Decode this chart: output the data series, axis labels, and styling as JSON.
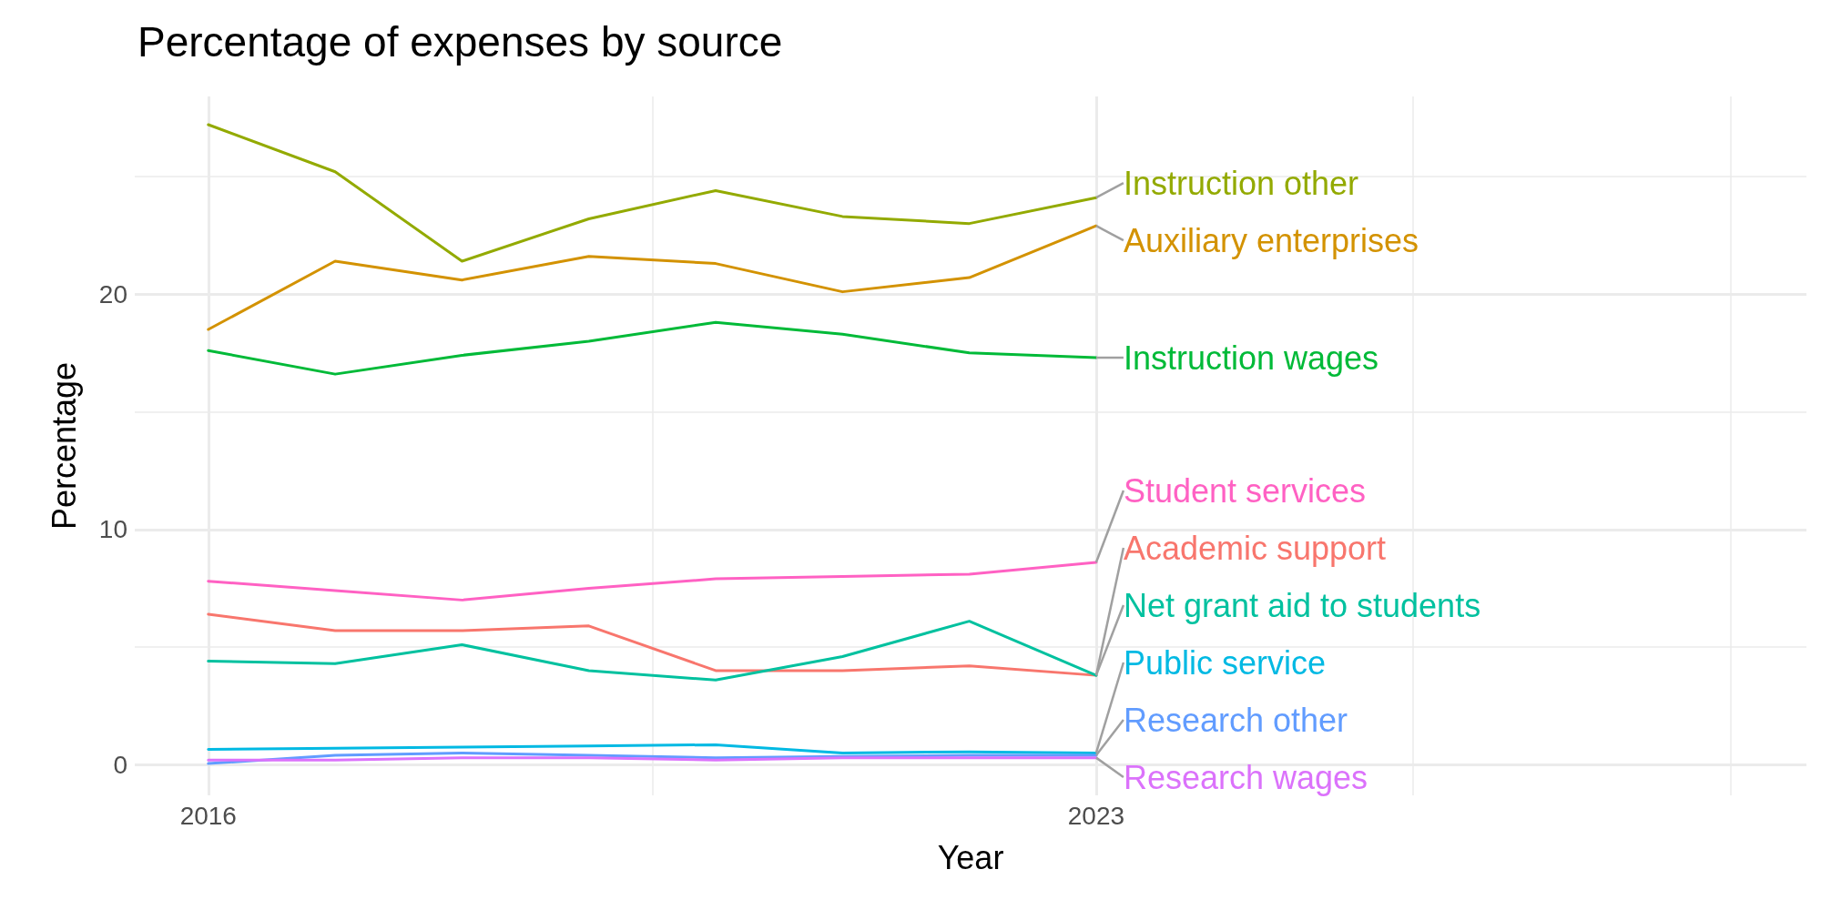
{
  "chart_data": {
    "type": "line",
    "title": "Percentage of expenses by source",
    "xlabel": "Year",
    "ylabel": "Percentage",
    "x": [
      2016,
      2017,
      2018,
      2019,
      2020,
      2021,
      2022,
      2023
    ],
    "xlim": [
      2015.42,
      2028.6
    ],
    "xticks": [
      2016,
      {
        "value": 2019.5,
        "label": null
      },
      2023,
      {
        "value": 2025.5,
        "label": null
      },
      {
        "value": 2028,
        "label": null
      }
    ],
    "ylim": [
      -1.3,
      28.4
    ],
    "yticks": [
      0,
      {
        "value": 5,
        "label": null
      },
      10,
      {
        "value": 15,
        "label": null
      },
      20,
      {
        "value": 25,
        "label": null
      }
    ],
    "grid": true,
    "legend": false,
    "marker": "none",
    "line_style": "solid",
    "series": [
      {
        "name": "Instruction other",
        "color": "#93aa00",
        "values": [
          27.2,
          25.2,
          21.4,
          23.2,
          24.4,
          23.3,
          23.0,
          24.1
        ]
      },
      {
        "name": "Auxiliary enterprises",
        "color": "#d39200",
        "values": [
          18.5,
          21.4,
          20.6,
          21.6,
          21.3,
          20.1,
          20.7,
          22.9
        ]
      },
      {
        "name": "Instruction wages",
        "color": "#00ba38",
        "values": [
          17.6,
          16.6,
          17.4,
          18.0,
          18.8,
          18.3,
          17.5,
          17.3
        ]
      },
      {
        "name": "Student services",
        "color": "#ff61c3",
        "values": [
          7.8,
          7.4,
          7.0,
          7.5,
          7.9,
          8.0,
          8.1,
          8.6
        ]
      },
      {
        "name": "Academic support",
        "color": "#f8766d",
        "values": [
          6.4,
          5.7,
          5.7,
          5.9,
          4.0,
          4.0,
          4.2,
          3.8
        ]
      },
      {
        "name": "Net grant aid to students",
        "color": "#00c19f",
        "values": [
          4.4,
          4.3,
          5.1,
          4.0,
          3.6,
          4.6,
          6.1,
          3.8
        ]
      },
      {
        "name": "Public service",
        "color": "#00b9e3",
        "values": [
          0.65,
          0.7,
          0.75,
          0.8,
          0.85,
          0.5,
          0.55,
          0.5
        ]
      },
      {
        "name": "Research other",
        "color": "#619cff",
        "values": [
          0.05,
          0.4,
          0.5,
          0.4,
          0.3,
          0.35,
          0.4,
          0.4
        ]
      },
      {
        "name": "Research wages",
        "color": "#db72fb",
        "values": [
          0.2,
          0.2,
          0.3,
          0.3,
          0.2,
          0.3,
          0.3,
          0.3
        ]
      }
    ]
  }
}
